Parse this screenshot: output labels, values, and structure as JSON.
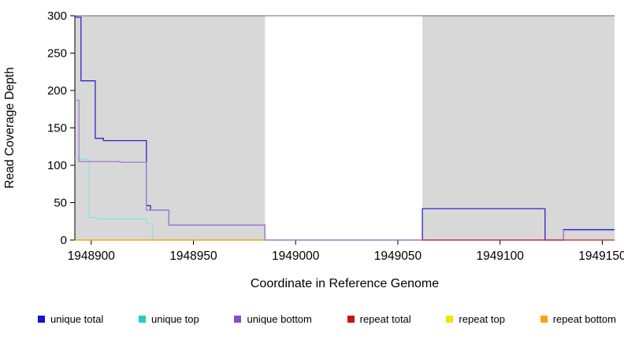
{
  "chart_data": {
    "type": "line",
    "title": "",
    "xlabel": "Coordinate in Reference Genome",
    "ylabel": "Read Coverage Depth",
    "xlim": [
      1948892,
      1949156
    ],
    "ylim": [
      0,
      300
    ],
    "xticks": [
      1948900,
      1948950,
      1949000,
      1949050,
      1949100,
      1949150
    ],
    "yticks": [
      0,
      50,
      100,
      150,
      200,
      250,
      300
    ],
    "grid": false,
    "legend_position": "bottom",
    "shaded_regions": [
      {
        "name": "repeat-region-left",
        "from": 1948892,
        "to": 1948985,
        "color": "#d8d8d8"
      },
      {
        "name": "repeat-region-right",
        "from": 1949062,
        "to": 1949156,
        "color": "#d8d8d8"
      }
    ],
    "series": [
      {
        "name": "unique total",
        "line_color": "#2828c8",
        "swatch_color": "#1515cd",
        "points": [
          [
            1948892,
            298
          ],
          [
            1948895,
            298
          ],
          [
            1948895,
            213
          ],
          [
            1948902,
            213
          ],
          [
            1948902,
            136
          ],
          [
            1948906,
            136
          ],
          [
            1948906,
            133
          ],
          [
            1948927,
            133
          ],
          [
            1948927,
            46
          ],
          [
            1948929,
            46
          ],
          [
            1948929,
            40
          ],
          [
            1948938,
            40
          ],
          [
            1948938,
            20
          ],
          [
            1948985,
            20
          ],
          [
            1948985,
            0
          ],
          [
            1949062,
            0
          ],
          [
            1949062,
            42
          ],
          [
            1949122,
            42
          ],
          [
            1949122,
            0
          ],
          [
            1949131,
            0
          ],
          [
            1949131,
            14
          ],
          [
            1949156,
            14
          ]
        ]
      },
      {
        "name": "unique top",
        "line_color": "#7fe7e3",
        "swatch_color": "#2cc8c8",
        "points": [
          [
            1948892,
            110
          ],
          [
            1948894,
            110
          ],
          [
            1948894,
            108
          ],
          [
            1948899,
            108
          ],
          [
            1948899,
            30
          ],
          [
            1948903,
            30
          ],
          [
            1948903,
            28
          ],
          [
            1948927,
            28
          ],
          [
            1948927,
            22
          ],
          [
            1948930,
            22
          ],
          [
            1948930,
            0
          ],
          [
            1948985,
            0
          ]
        ]
      },
      {
        "name": "unique bottom",
        "line_color": "#a87fd4",
        "swatch_color": "#8a4fc8",
        "points": [
          [
            1948892,
            187
          ],
          [
            1948894,
            187
          ],
          [
            1948894,
            105
          ],
          [
            1948914,
            105
          ],
          [
            1948914,
            104
          ],
          [
            1948927,
            104
          ],
          [
            1948927,
            40
          ],
          [
            1948938,
            40
          ],
          [
            1948938,
            20
          ],
          [
            1948985,
            20
          ],
          [
            1948985,
            0
          ],
          [
            1949131,
            0
          ],
          [
            1949131,
            13
          ],
          [
            1949156,
            13
          ]
        ]
      },
      {
        "name": "repeat total",
        "line_color": "#cc2020",
        "swatch_color": "#cc1111",
        "points": [
          [
            1949062,
            0
          ],
          [
            1949156,
            0
          ]
        ]
      },
      {
        "name": "repeat top",
        "line_color": "#f0e000",
        "swatch_color": "#f2e400",
        "points": [
          [
            1948892,
            0
          ],
          [
            1948985,
            0
          ]
        ]
      },
      {
        "name": "repeat bottom",
        "line_color": "#ff9d00",
        "swatch_color": "#ffa300",
        "points": [
          [
            1948892,
            0
          ],
          [
            1948985,
            0
          ]
        ]
      }
    ]
  }
}
